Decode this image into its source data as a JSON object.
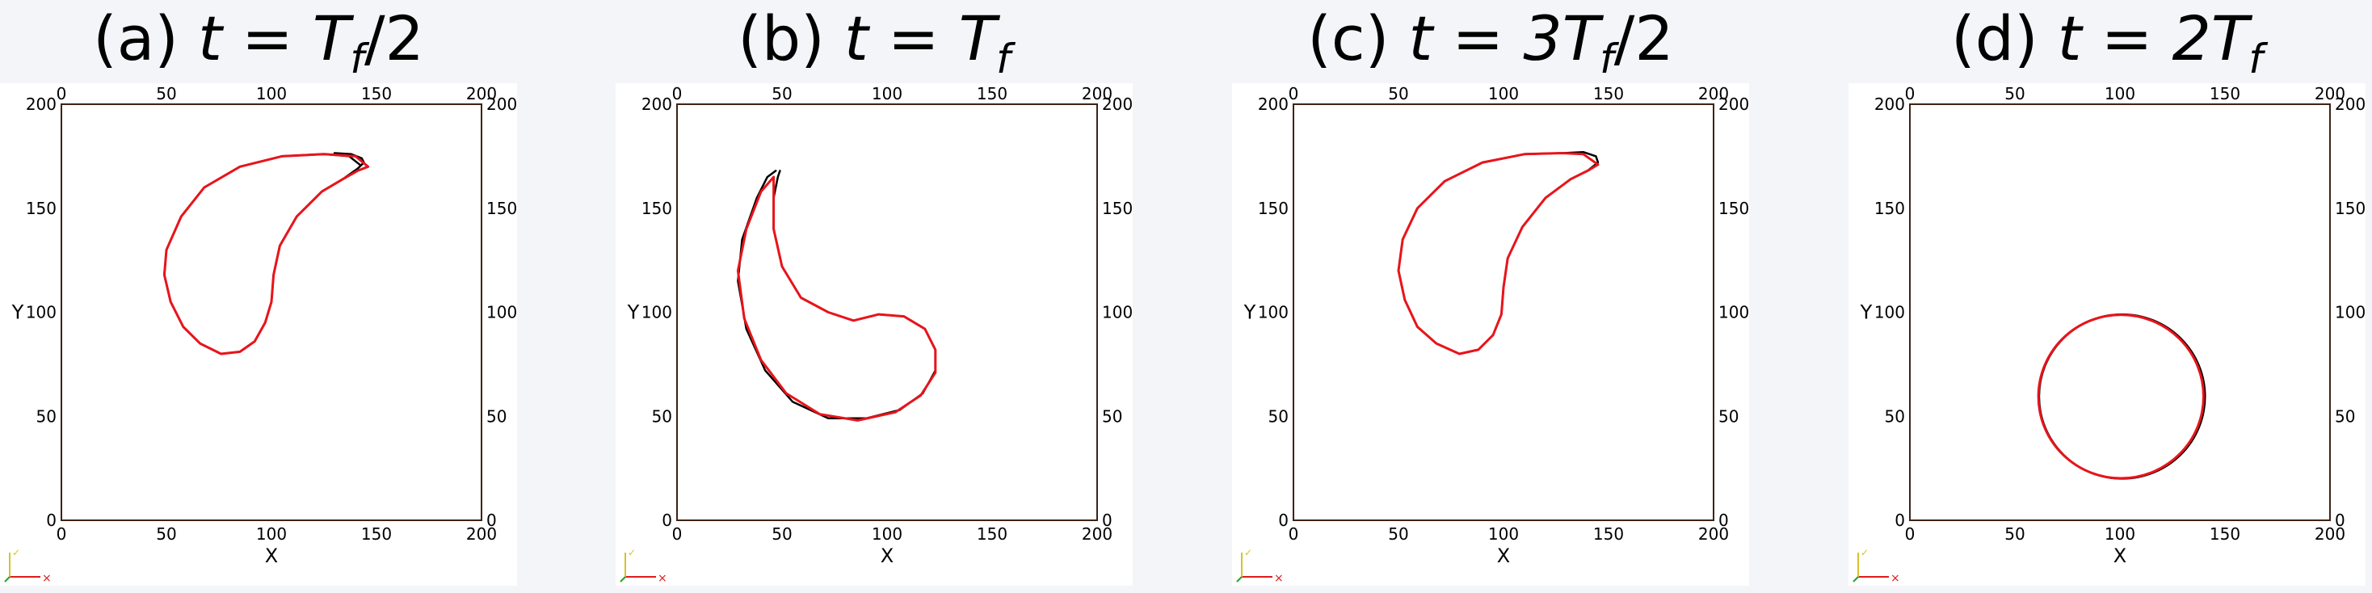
{
  "colors": {
    "exact": "#000000",
    "computed": "#e8141b",
    "frame": "#3d2314",
    "axis_x": "#e01a1a",
    "axis_y": "#d8c22a",
    "axis_z": "#22a32a"
  },
  "chart_data": [
    {
      "type": "line",
      "title_prefix": "(a)",
      "title_expr": "t = T",
      "title_sub": "f",
      "title_suffix": "/2",
      "xlabel": "X",
      "ylabel": "Y",
      "xlim": [
        0,
        200
      ],
      "ylim": [
        0,
        200
      ],
      "xticks": [
        "0",
        "50",
        "100",
        "150",
        "200"
      ],
      "yticks": [
        "0",
        "50",
        "100",
        "150",
        "200"
      ],
      "series": [
        {
          "points": [
            [
              142,
              171
            ],
            [
              137,
              175
            ],
            [
              125,
              176
            ],
            [
              105,
              175
            ],
            [
              85,
              170
            ],
            [
              68,
              160
            ],
            [
              57,
              146
            ],
            [
              50,
              130
            ],
            [
              49,
              118
            ],
            [
              52,
              105
            ],
            [
              58,
              93
            ],
            [
              66,
              85
            ],
            [
              76,
              80
            ],
            [
              85,
              81
            ],
            [
              92,
              86
            ],
            [
              97,
              95
            ],
            [
              100,
              105
            ],
            [
              101,
              118
            ],
            [
              104,
              132
            ],
            [
              112,
              146
            ],
            [
              124,
              158
            ],
            [
              134,
              164
            ],
            [
              141,
              169
            ],
            [
              144,
              172
            ],
            [
              143,
              174
            ],
            [
              138,
              176
            ],
            [
              130,
              176.5
            ]
          ]
        },
        {
          "points": [
            [
              146,
              170
            ],
            [
              140,
              175
            ],
            [
              125,
              176
            ],
            [
              105,
              175
            ],
            [
              85,
              170
            ],
            [
              68,
              160
            ],
            [
              57,
              146
            ],
            [
              50,
              130
            ],
            [
              49,
              118
            ],
            [
              52,
              105
            ],
            [
              58,
              93
            ],
            [
              66,
              85
            ],
            [
              76,
              80
            ],
            [
              85,
              81
            ],
            [
              92,
              86
            ],
            [
              97,
              95
            ],
            [
              100,
              105
            ],
            [
              101,
              118
            ],
            [
              104,
              132
            ],
            [
              112,
              146
            ],
            [
              124,
              158
            ],
            [
              134,
              164
            ],
            [
              141,
              168
            ],
            [
              146,
              170
            ]
          ]
        }
      ]
    },
    {
      "type": "line",
      "title_prefix": "(b)",
      "title_expr": "t = T",
      "title_sub": "f",
      "title_suffix": "",
      "xlabel": "X",
      "ylabel": "Y",
      "xlim": [
        0,
        200
      ],
      "ylim": [
        0,
        200
      ],
      "xticks": [
        "0",
        "50",
        "100",
        "150",
        "200"
      ],
      "yticks": [
        "0",
        "50",
        "100",
        "150",
        "200"
      ],
      "series": [
        {
          "points": [
            [
              47,
              168
            ],
            [
              43,
              165
            ],
            [
              38,
              155
            ],
            [
              31,
              135
            ],
            [
              29,
              115
            ],
            [
              33,
              92
            ],
            [
              42,
              72
            ],
            [
              55,
              57
            ],
            [
              72,
              49
            ],
            [
              90,
              49
            ],
            [
              106,
              53
            ],
            [
              117,
              61
            ],
            [
              123,
              72
            ],
            [
              123,
              82
            ],
            [
              118,
              92
            ],
            [
              108,
              98
            ],
            [
              96,
              99
            ],
            [
              84,
              96
            ],
            [
              72,
              100
            ],
            [
              59,
              107
            ],
            [
              50,
              122
            ],
            [
              46,
              140
            ],
            [
              46,
              155
            ],
            [
              48,
              165
            ],
            [
              49,
              168
            ]
          ]
        },
        {
          "points": [
            [
              46,
              165
            ],
            [
              40,
              158
            ],
            [
              33,
              140
            ],
            [
              29,
              120
            ],
            [
              32,
              97
            ],
            [
              40,
              77
            ],
            [
              52,
              61
            ],
            [
              68,
              51
            ],
            [
              86,
              48
            ],
            [
              104,
              52
            ],
            [
              116,
              60
            ],
            [
              123,
              71
            ],
            [
              123,
              82
            ],
            [
              118,
              92
            ],
            [
              108,
              98
            ],
            [
              96,
              99
            ],
            [
              84,
              96
            ],
            [
              72,
              100
            ],
            [
              59,
              107
            ],
            [
              50,
              122
            ],
            [
              46,
              140
            ],
            [
              46,
              155
            ],
            [
              46,
              165
            ]
          ]
        }
      ]
    },
    {
      "type": "line",
      "title_prefix": "(c)",
      "title_expr": "t = 3T",
      "title_sub": "f",
      "title_suffix": "/2",
      "xlabel": "X",
      "ylabel": "Y",
      "xlim": [
        0,
        200
      ],
      "ylim": [
        0,
        200
      ],
      "xticks": [
        "0",
        "50",
        "100",
        "150",
        "200"
      ],
      "yticks": [
        "0",
        "50",
        "100",
        "150",
        "200"
      ],
      "series": [
        {
          "points": [
            [
              140,
              168
            ],
            [
              145,
              172
            ],
            [
              144,
              175
            ],
            [
              138,
              177
            ],
            [
              128,
              176.5
            ],
            [
              110,
              176
            ],
            [
              90,
              172
            ],
            [
              72,
              163
            ],
            [
              59,
              150
            ],
            [
              52,
              135
            ],
            [
              50,
              120
            ],
            [
              53,
              106
            ],
            [
              59,
              93
            ],
            [
              68,
              85
            ],
            [
              79,
              80
            ],
            [
              88,
              82
            ],
            [
              95,
              89
            ],
            [
              99,
              99
            ],
            [
              100,
              112
            ],
            [
              102,
              126
            ],
            [
              109,
              141
            ],
            [
              120,
              155
            ],
            [
              132,
              164
            ],
            [
              140,
              168
            ]
          ]
        },
        {
          "points": [
            [
              145,
              171
            ],
            [
              138,
              176
            ],
            [
              128,
              176.5
            ],
            [
              110,
              176
            ],
            [
              90,
              172
            ],
            [
              72,
              163
            ],
            [
              59,
              150
            ],
            [
              52,
              135
            ],
            [
              50,
              120
            ],
            [
              53,
              106
            ],
            [
              59,
              93
            ],
            [
              68,
              85
            ],
            [
              79,
              80
            ],
            [
              88,
              82
            ],
            [
              95,
              89
            ],
            [
              99,
              99
            ],
            [
              100,
              112
            ],
            [
              102,
              126
            ],
            [
              109,
              141
            ],
            [
              120,
              155
            ],
            [
              132,
              164
            ],
            [
              140,
              168
            ],
            [
              145,
              171
            ]
          ]
        }
      ]
    },
    {
      "type": "line",
      "title_prefix": "(d)",
      "title_expr": "t = 2T",
      "title_sub": "f",
      "title_suffix": "",
      "xlabel": "X",
      "ylabel": "Y",
      "xlim": [
        0,
        200
      ],
      "ylim": [
        0,
        200
      ],
      "xticks": [
        "0",
        "50",
        "100",
        "150",
        "200"
      ],
      "yticks": [
        "0",
        "50",
        "100",
        "150",
        "200"
      ],
      "series": [
        {
          "circle": {
            "cx": 101,
            "cy": 59.5,
            "r": 39.5
          }
        },
        {
          "circle": {
            "cx": 100.5,
            "cy": 59.5,
            "r": 39.3
          }
        }
      ]
    }
  ]
}
